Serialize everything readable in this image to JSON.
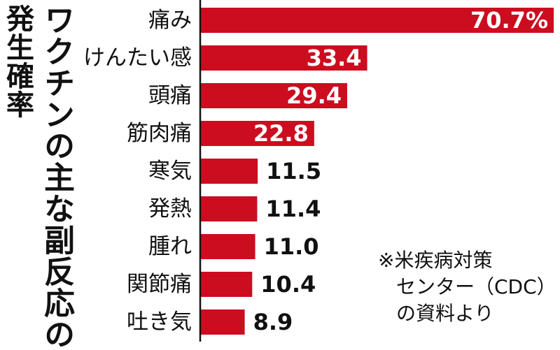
{
  "title": "ワクチンの主な副反応の",
  "subtitle": "発生確率",
  "source_note": [
    "※米疾病対策",
    "センター（CDC）",
    "の資料より"
  ],
  "colors": {
    "bar": "#cc0d1f",
    "text": "#111111",
    "axis": "#111111",
    "value_inside": "#ffffff"
  },
  "chart_data": {
    "type": "bar",
    "orientation": "horizontal",
    "categories": [
      "痛み",
      "けんたい感",
      "頭痛",
      "筋肉痛",
      "寒気",
      "発熱",
      "腫れ",
      "関節痛",
      "吐き気"
    ],
    "values": [
      70.7,
      33.4,
      29.4,
      22.8,
      11.5,
      11.4,
      11.0,
      10.4,
      8.9
    ],
    "value_labels": [
      "70.7%",
      "33.4",
      "29.4",
      "22.8",
      "11.5",
      "11.4",
      "11.0",
      "10.4",
      "8.9"
    ],
    "unit": "%",
    "xlim": [
      0,
      70.7
    ],
    "grid": false,
    "legend": "none"
  }
}
